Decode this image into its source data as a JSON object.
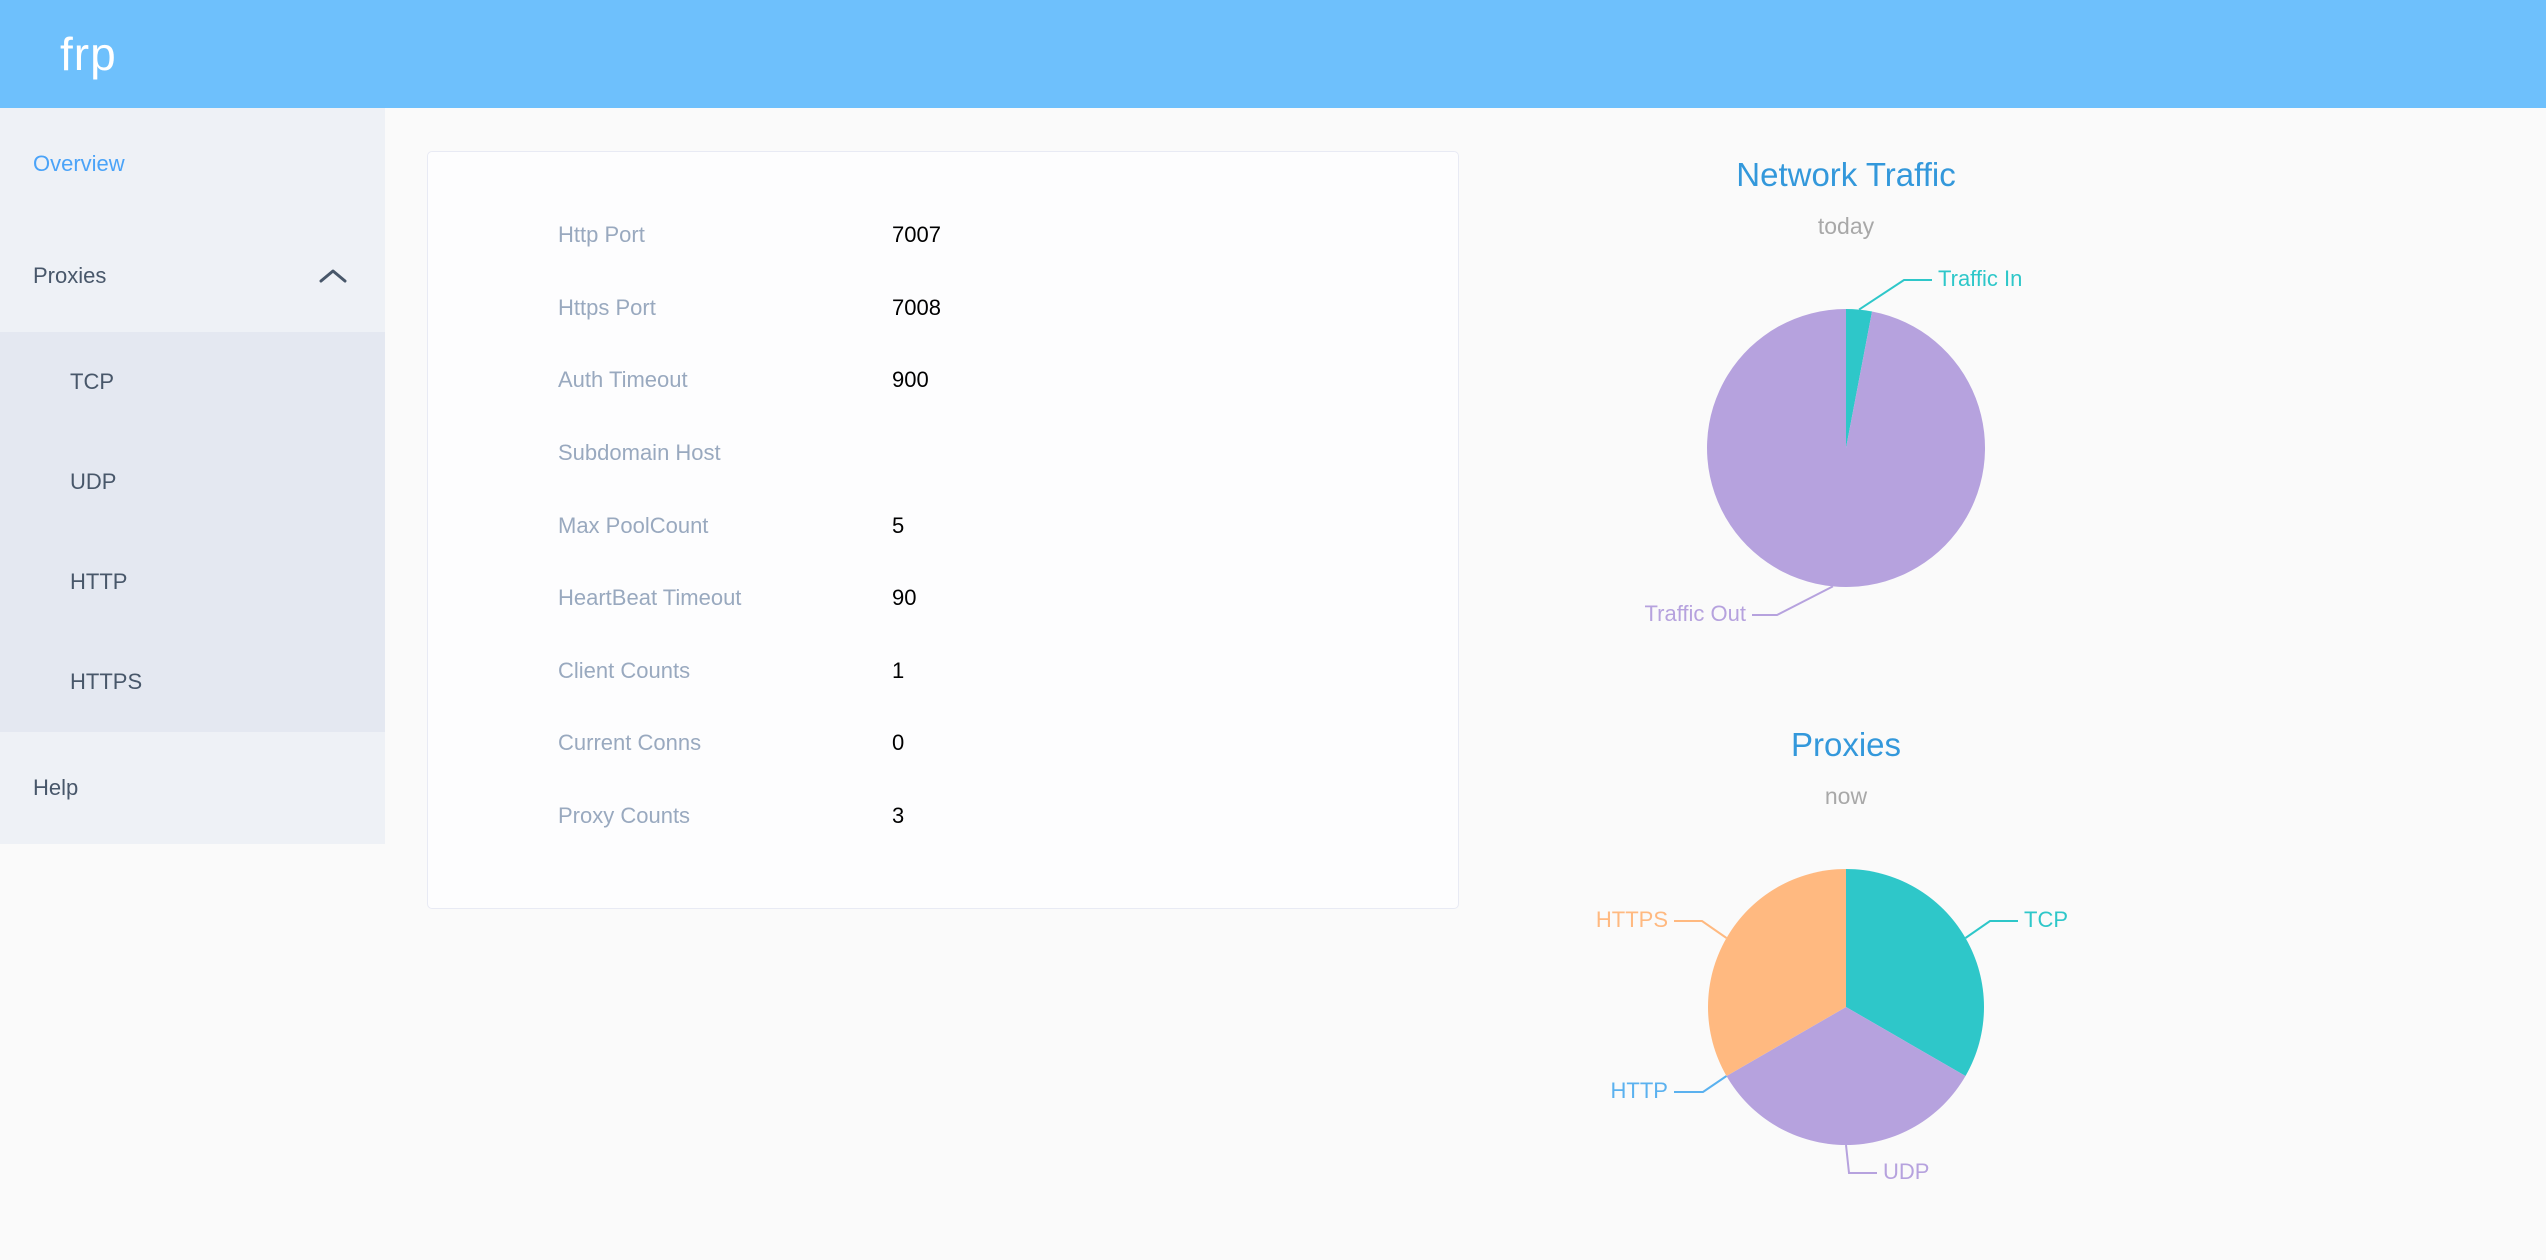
{
  "header": {
    "logo": "frp"
  },
  "sidebar": {
    "active_item": "Overview",
    "overview_label": "Overview",
    "proxies_label": "Proxies",
    "proxies_expanded": true,
    "proxies_submenu": [
      "TCP",
      "UDP",
      "HTTP",
      "HTTPS"
    ],
    "help_label": "Help"
  },
  "server_info": {
    "rows": [
      {
        "label": "Http Port",
        "value": "7007"
      },
      {
        "label": "Https Port",
        "value": "7008"
      },
      {
        "label": "Auth Timeout",
        "value": "900"
      },
      {
        "label": "Subdomain Host",
        "value": ""
      },
      {
        "label": "Max PoolCount",
        "value": "5"
      },
      {
        "label": "HeartBeat Timeout",
        "value": "90"
      },
      {
        "label": "Client Counts",
        "value": "1"
      },
      {
        "label": "Current Conns",
        "value": "0"
      },
      {
        "label": "Proxy Counts",
        "value": "3"
      }
    ]
  },
  "chart_data": [
    {
      "type": "pie",
      "title": "Network Traffic",
      "subtitle": "today",
      "unit": "percent (estimated from slice angles; absolute byte values not shown)",
      "legend_position": "none",
      "label_style": "outside-with-leader-lines",
      "slices": [
        {
          "label": "Traffic In",
          "value": 3,
          "color": "#2ec7c9"
        },
        {
          "label": "Traffic Out",
          "value": 97,
          "color": "#b6a2de"
        }
      ]
    },
    {
      "type": "pie",
      "title": "Proxies",
      "subtitle": "now",
      "unit": "proxy count",
      "legend_position": "none",
      "label_style": "outside-with-leader-lines",
      "slices": [
        {
          "label": "TCP",
          "value": 1,
          "color": "#2ec7c9"
        },
        {
          "label": "UDP",
          "value": 1,
          "color": "#b6a2de"
        },
        {
          "label": "HTTP",
          "value": 0,
          "color": "#5ab1ef"
        },
        {
          "label": "HTTPS",
          "value": 1,
          "color": "#ffb980"
        }
      ]
    }
  ],
  "colors": {
    "header_bg": "#6ec0fc",
    "sidebar_bg": "#eef1f6",
    "submenu_bg": "#e4e8f1",
    "active_menu": "#4aa3f8",
    "menu_text": "#48576a",
    "chart_title": "#3398db",
    "chart_subtitle": "#a8a8a8",
    "label_text": "#99a9bf",
    "value_text": "#000000",
    "page_bg": "#fafafa",
    "card_bg": "#fdfdfe",
    "card_border": "#e8eaf4"
  }
}
